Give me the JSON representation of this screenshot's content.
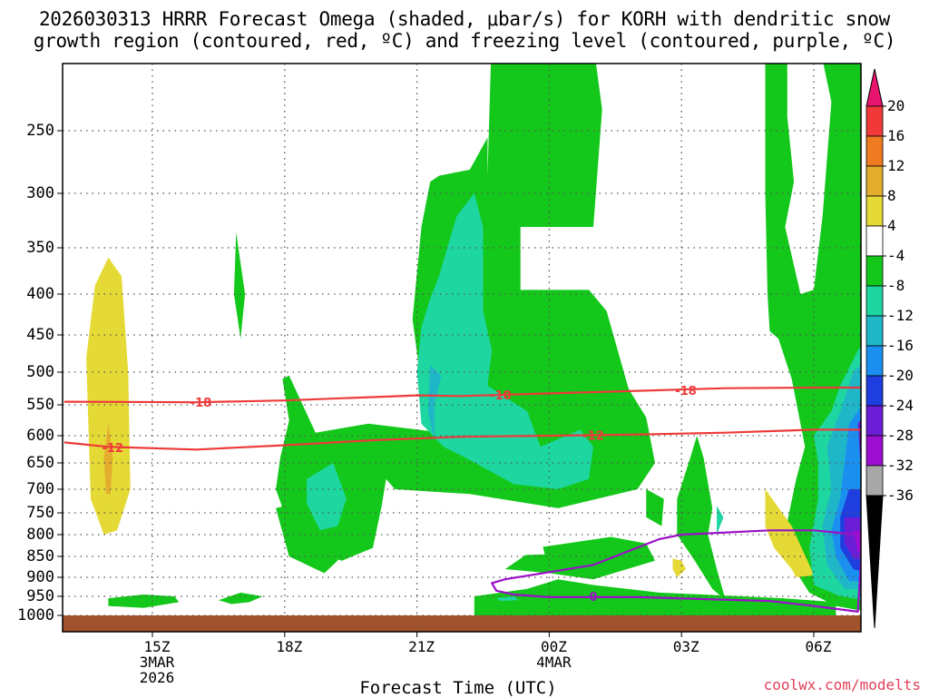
{
  "title": {
    "line1": "2026030313 HRRR Forecast Omega (shaded, μbar/s) for KORH with dendritic snow",
    "line2": "growth region (contoured, red, ºC) and freezing level (contoured, purple, ºC)"
  },
  "footer": {
    "x_axis_title": "Forecast Time (UTC)",
    "credit": "coolwx.com/modelts"
  },
  "chart_data": {
    "type": "heatmap",
    "title": "2026030313 HRRR Forecast Omega (shaded, μbar/s) for KORH with dendritic snow growth region (contoured, red, ºC) and freezing level (contoured, purple, ºC)",
    "xlabel": "Forecast Time (UTC)",
    "ylabel": "",
    "x_range_hours": [
      13.0,
      31.1
    ],
    "y_axis": "pressure (log scale, inverted)",
    "y_ticks": [
      250,
      300,
      350,
      400,
      450,
      500,
      550,
      600,
      650,
      700,
      750,
      800,
      850,
      900,
      950,
      1000
    ],
    "x_ticks": [
      {
        "hour": 15,
        "label": "15Z",
        "sub1": "3MAR",
        "sub2": "2026"
      },
      {
        "hour": 18,
        "label": "18Z",
        "sub1": "",
        "sub2": ""
      },
      {
        "hour": 21,
        "label": "21Z",
        "sub1": "",
        "sub2": ""
      },
      {
        "hour": 24,
        "label": "00Z",
        "sub1": "4MAR",
        "sub2": ""
      },
      {
        "hour": 27,
        "label": "03Z",
        "sub1": "",
        "sub2": ""
      },
      {
        "hour": 30,
        "label": "06Z",
        "sub1": "",
        "sub2": ""
      }
    ],
    "grid": true,
    "colorbar": {
      "labels": [
        "20",
        "16",
        "12",
        "8",
        "4",
        "-4",
        "-8",
        "-12",
        "-16",
        "-20",
        "-24",
        "-28",
        "-32",
        "-36"
      ],
      "colors": [
        "#e8146e",
        "#f03a3a",
        "#ee7a22",
        "#e3ad2e",
        "#e5d935",
        "#ffffff",
        "#13c81a",
        "#1ed6a0",
        "#1fb6c8",
        "#1b8ff0",
        "#1f3ee0",
        "#6a1fd6",
        "#9c0fd0",
        "#a8a8a8",
        "#000000"
      ]
    },
    "contours": [
      {
        "name": "-18",
        "color": "#ee3a3a",
        "points": [
          [
            13.0,
            545
          ],
          [
            16.0,
            546
          ],
          [
            18.0,
            543
          ],
          [
            21.0,
            535
          ],
          [
            22.0,
            536
          ],
          [
            24.0,
            532
          ],
          [
            26.0,
            528
          ],
          [
            28.0,
            524
          ],
          [
            30.0,
            523
          ],
          [
            31.1,
            523
          ]
        ]
      },
      {
        "name": "-12",
        "color": "#ee3a3a",
        "points": [
          [
            13.0,
            612
          ],
          [
            14.0,
            620
          ],
          [
            16.0,
            625
          ],
          [
            18.0,
            617
          ],
          [
            20.0,
            608
          ],
          [
            22.0,
            602
          ],
          [
            24.0,
            600
          ],
          [
            26.0,
            598
          ],
          [
            28.0,
            595
          ],
          [
            30.0,
            590
          ],
          [
            31.1,
            590
          ]
        ]
      },
      {
        "name": "0",
        "color": "#9a10c8",
        "points": [
          [
            22.7,
            915
          ],
          [
            23.0,
            905
          ],
          [
            25.0,
            870
          ],
          [
            26.5,
            810
          ],
          [
            27.0,
            800
          ],
          [
            29.0,
            790
          ],
          [
            30.0,
            790
          ],
          [
            31.0,
            800
          ],
          [
            31.1,
            805
          ],
          [
            31.0,
            990
          ],
          [
            30.0,
            975
          ],
          [
            29.0,
            962
          ],
          [
            26.0,
            952
          ],
          [
            24.0,
            952
          ],
          [
            23.2,
            945
          ],
          [
            22.8,
            935
          ],
          [
            22.7,
            915
          ]
        ]
      }
    ],
    "regions": [
      {
        "value": "-4 to -8",
        "color": "#13c81a",
        "description": "main upward motion region"
      },
      {
        "value": "-8 to -12",
        "color": "#1ed6a0"
      },
      {
        "value": "-12 to -16",
        "color": "#1fb6c8"
      },
      {
        "value": "-16 to -28",
        "color": "#1b8ff0"
      },
      {
        "value": "4 to 8",
        "color": "#e5d935"
      },
      {
        "value": "8 to 12",
        "color": "#e3ad2e"
      }
    ]
  }
}
